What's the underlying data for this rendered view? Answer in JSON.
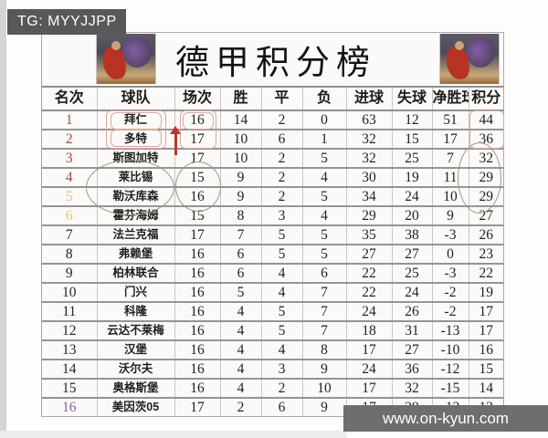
{
  "badge": {
    "text": "TG: MYYJJPP"
  },
  "watermark": {
    "text": "www.on-kyun.com"
  },
  "title": "德甲积分榜",
  "table": {
    "headers": [
      "名次",
      "球队",
      "场次",
      "胜",
      "平",
      "负",
      "进球",
      "失球",
      "净胜球",
      "积分"
    ],
    "row_keys": [
      "rank",
      "team",
      "played",
      "win",
      "draw",
      "loss",
      "gf",
      "ga",
      "gd",
      "pts"
    ],
    "rows": [
      {
        "rank": "1",
        "team": "拜仁",
        "played": "16",
        "win": "14",
        "draw": "2",
        "loss": "0",
        "gf": "63",
        "ga": "12",
        "gd": "51",
        "pts": "44",
        "rank_color": "red"
      },
      {
        "rank": "2",
        "team": "多特",
        "played": "17",
        "win": "10",
        "draw": "6",
        "loss": "1",
        "gf": "32",
        "ga": "15",
        "gd": "17",
        "pts": "36",
        "rank_color": "red"
      },
      {
        "rank": "3",
        "team": "斯图加特",
        "played": "17",
        "win": "10",
        "draw": "2",
        "loss": "5",
        "gf": "32",
        "ga": "25",
        "gd": "7",
        "pts": "32",
        "rank_color": "red"
      },
      {
        "rank": "4",
        "team": "莱比锡",
        "played": "15",
        "win": "9",
        "draw": "2",
        "loss": "4",
        "gf": "30",
        "ga": "19",
        "gd": "11",
        "pts": "29",
        "rank_color": "red"
      },
      {
        "rank": "5",
        "team": "勒沃库森",
        "played": "16",
        "win": "9",
        "draw": "2",
        "loss": "5",
        "gf": "34",
        "ga": "24",
        "gd": "10",
        "pts": "29",
        "rank_color": "yellow"
      },
      {
        "rank": "6",
        "team": "霍芬海姆",
        "played": "15",
        "win": "8",
        "draw": "3",
        "loss": "4",
        "gf": "29",
        "ga": "20",
        "gd": "9",
        "pts": "27",
        "rank_color": "yellow"
      },
      {
        "rank": "7",
        "team": "法兰克福",
        "played": "17",
        "win": "7",
        "draw": "5",
        "loss": "5",
        "gf": "35",
        "ga": "38",
        "gd": "-3",
        "pts": "26",
        "rank_color": "black"
      },
      {
        "rank": "8",
        "team": "弗赖堡",
        "played": "16",
        "win": "6",
        "draw": "5",
        "loss": "5",
        "gf": "27",
        "ga": "27",
        "gd": "0",
        "pts": "23",
        "rank_color": "black"
      },
      {
        "rank": "9",
        "team": "柏林联合",
        "played": "16",
        "win": "6",
        "draw": "4",
        "loss": "6",
        "gf": "22",
        "ga": "25",
        "gd": "-3",
        "pts": "22",
        "rank_color": "black"
      },
      {
        "rank": "10",
        "team": "门兴",
        "played": "16",
        "win": "5",
        "draw": "4",
        "loss": "7",
        "gf": "22",
        "ga": "24",
        "gd": "-2",
        "pts": "19",
        "rank_color": "black"
      },
      {
        "rank": "11",
        "team": "科隆",
        "played": "16",
        "win": "4",
        "draw": "5",
        "loss": "7",
        "gf": "24",
        "ga": "26",
        "gd": "-2",
        "pts": "17",
        "rank_color": "black"
      },
      {
        "rank": "12",
        "team": "云达不莱梅",
        "played": "16",
        "win": "4",
        "draw": "5",
        "loss": "7",
        "gf": "18",
        "ga": "31",
        "gd": "-13",
        "pts": "17",
        "rank_color": "black"
      },
      {
        "rank": "13",
        "team": "汉堡",
        "played": "16",
        "win": "4",
        "draw": "4",
        "loss": "8",
        "gf": "17",
        "ga": "27",
        "gd": "-10",
        "pts": "16",
        "rank_color": "black"
      },
      {
        "rank": "14",
        "team": "沃尔夫",
        "played": "16",
        "win": "4",
        "draw": "3",
        "loss": "9",
        "gf": "24",
        "ga": "36",
        "gd": "-12",
        "pts": "15",
        "rank_color": "black"
      },
      {
        "rank": "15",
        "team": "奥格斯堡",
        "played": "16",
        "win": "4",
        "draw": "2",
        "loss": "10",
        "gf": "17",
        "ga": "32",
        "gd": "-15",
        "pts": "14",
        "rank_color": "black"
      },
      {
        "rank": "16",
        "team": "美因茨05",
        "played": "17",
        "win": "2",
        "draw": "6",
        "loss": "9",
        "gf": "17",
        "ga": "29",
        "gd": "-12",
        "pts": "12",
        "rank_color": "purple"
      }
    ]
  },
  "chart_data": {
    "type": "table",
    "title": "德甲积分榜",
    "columns": [
      "名次",
      "球队",
      "场次",
      "胜",
      "平",
      "负",
      "进球",
      "失球",
      "净胜球",
      "积分"
    ],
    "rows": [
      [
        "1",
        "拜仁",
        16,
        14,
        2,
        0,
        63,
        12,
        51,
        44
      ],
      [
        "2",
        "多特",
        17,
        10,
        6,
        1,
        32,
        15,
        17,
        36
      ],
      [
        "3",
        "斯图加特",
        17,
        10,
        2,
        5,
        32,
        25,
        7,
        32
      ],
      [
        "4",
        "莱比锡",
        15,
        9,
        2,
        4,
        30,
        19,
        11,
        29
      ],
      [
        "5",
        "勒沃库森",
        16,
        9,
        2,
        5,
        34,
        24,
        10,
        29
      ],
      [
        "6",
        "霍芬海姆",
        15,
        8,
        3,
        4,
        29,
        20,
        9,
        27
      ],
      [
        "7",
        "法兰克福",
        17,
        7,
        5,
        5,
        35,
        38,
        -3,
        26
      ],
      [
        "8",
        "弗赖堡",
        16,
        6,
        5,
        5,
        27,
        27,
        0,
        23
      ],
      [
        "9",
        "柏林联合",
        16,
        6,
        4,
        6,
        22,
        25,
        -3,
        22
      ],
      [
        "10",
        "门兴",
        16,
        5,
        4,
        7,
        22,
        24,
        -2,
        19
      ],
      [
        "11",
        "科隆",
        16,
        4,
        5,
        7,
        24,
        26,
        -2,
        17
      ],
      [
        "12",
        "云达不莱梅",
        16,
        4,
        5,
        7,
        18,
        31,
        -13,
        17
      ],
      [
        "13",
        "汉堡",
        16,
        4,
        4,
        8,
        17,
        27,
        -10,
        16
      ],
      [
        "14",
        "沃尔夫",
        16,
        4,
        3,
        9,
        24,
        36,
        -12,
        15
      ],
      [
        "15",
        "奥格斯堡",
        16,
        4,
        2,
        10,
        17,
        32,
        -15,
        14
      ],
      [
        "16",
        "美因茨05",
        17,
        2,
        6,
        9,
        17,
        29,
        -12,
        12
      ]
    ]
  },
  "colors": {
    "rank": {
      "red": "#a24841",
      "yellow": "#d9c97c",
      "black": "#262626",
      "purple": "#7e5f9e"
    },
    "annotation_pink": "#d9a8a0",
    "annotation_gray": "#a09587",
    "arrow_red": "#b5392c",
    "badge_bg": "#585858",
    "watermark_bg": "#6e6e6e"
  },
  "annotations": [
    {
      "name": "top-two-teams-box",
      "shape": "rounded-rect",
      "color": "#d9a8a0",
      "around": "球队 rows 1-2 (拜仁, 多特)"
    },
    {
      "name": "top-two-played-box",
      "shape": "rounded-rect",
      "color": "#d9a8a0",
      "around": "场次 rows 1-2 (16, 17)"
    },
    {
      "name": "top-two-points-box",
      "shape": "rounded-rect",
      "color": "#d9a8a0",
      "around": "积分 rows 1-2 (44, 36)"
    },
    {
      "name": "up-arrow",
      "shape": "arrow-up",
      "color": "#b5392c",
      "around": "row 3 斯图加特, left of 场次"
    },
    {
      "name": "teams-ellipse",
      "shape": "ellipse",
      "color": "#a09587",
      "around": "球队 rows 4-5 (莱比锡, 勒沃库森)"
    },
    {
      "name": "played-circle",
      "shape": "ellipse",
      "color": "#a09587",
      "around": "场次 rows 4-5 (15, 16)"
    },
    {
      "name": "points-ellipse",
      "shape": "ellipse",
      "color": "#a09587",
      "around": "积分 rows 3-5 (32, 29, 29)"
    }
  ]
}
